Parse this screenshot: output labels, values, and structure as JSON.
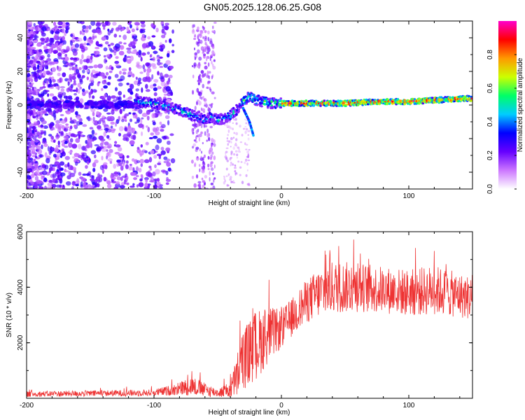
{
  "title": "GN05.2025.128.06.25.G08",
  "chart_data": [
    {
      "type": "heatmap",
      "title": "GN05.2025.128.06.25.G08",
      "xlabel": "Height of straight line (km)",
      "ylabel": "Frequency (Hz)",
      "xlim": [
        -200,
        150
      ],
      "ylim": [
        -50,
        50
      ],
      "xticks": [
        -200,
        -100,
        0,
        100
      ],
      "yticks": [
        -40,
        -20,
        0,
        20,
        40
      ],
      "colorbar": {
        "label": "Normalized spectral amplitude",
        "range": [
          0,
          1
        ],
        "ticks": [
          "0.0",
          "0.2",
          "0.4",
          "0.6",
          "0.8"
        ],
        "colors": [
          "#ffffff",
          "#cc77ff",
          "#6600ff",
          "#0000ff",
          "#00ccff",
          "#00ff66",
          "#ccff00",
          "#ff9900",
          "#ff0000",
          "#ff00cc"
        ]
      },
      "ridge": {
        "x": [
          -115,
          -100,
          -90,
          -80,
          -70,
          -60,
          -55,
          -50,
          -45,
          -40,
          -35,
          -30,
          -25,
          -20,
          -10,
          0,
          25,
          50,
          75,
          100,
          125,
          150
        ],
        "y": [
          2,
          1,
          -1,
          -3,
          -6,
          -9,
          -7,
          -9,
          -8,
          -6,
          -3,
          2,
          5,
          3,
          1,
          1,
          1,
          1,
          2,
          2,
          3,
          4
        ]
      },
      "echo_ridge": {
        "x": [
          -30,
          -25,
          -22
        ],
        "y": [
          -2,
          -10,
          -18
        ]
      }
    },
    {
      "type": "line",
      "xlabel": "Height of straight line (km)",
      "ylabel": "SNR (10 * v/v)",
      "xlim": [
        -200,
        150
      ],
      "ylim": [
        0,
        6000
      ],
      "xticks": [
        -200,
        -100,
        0,
        100
      ],
      "yticks": [
        2000,
        4000,
        6000
      ],
      "color": "#ee3333",
      "envelope": {
        "x": [
          -200,
          -100,
          -85,
          -70,
          -60,
          -50,
          -40,
          -35,
          -30,
          -20,
          -10,
          0,
          10,
          20,
          30,
          40,
          60,
          80,
          100,
          120,
          140,
          150
        ],
        "mean": [
          150,
          200,
          300,
          450,
          300,
          200,
          300,
          800,
          1400,
          1900,
          2300,
          2500,
          3000,
          3500,
          3800,
          4000,
          4000,
          3900,
          3800,
          3900,
          3700,
          3600
        ],
        "amplitude": [
          100,
          120,
          200,
          350,
          250,
          150,
          300,
          800,
          1100,
          1300,
          1000,
          700,
          700,
          800,
          900,
          950,
          900,
          850,
          850,
          900,
          800,
          800
        ]
      }
    }
  ]
}
